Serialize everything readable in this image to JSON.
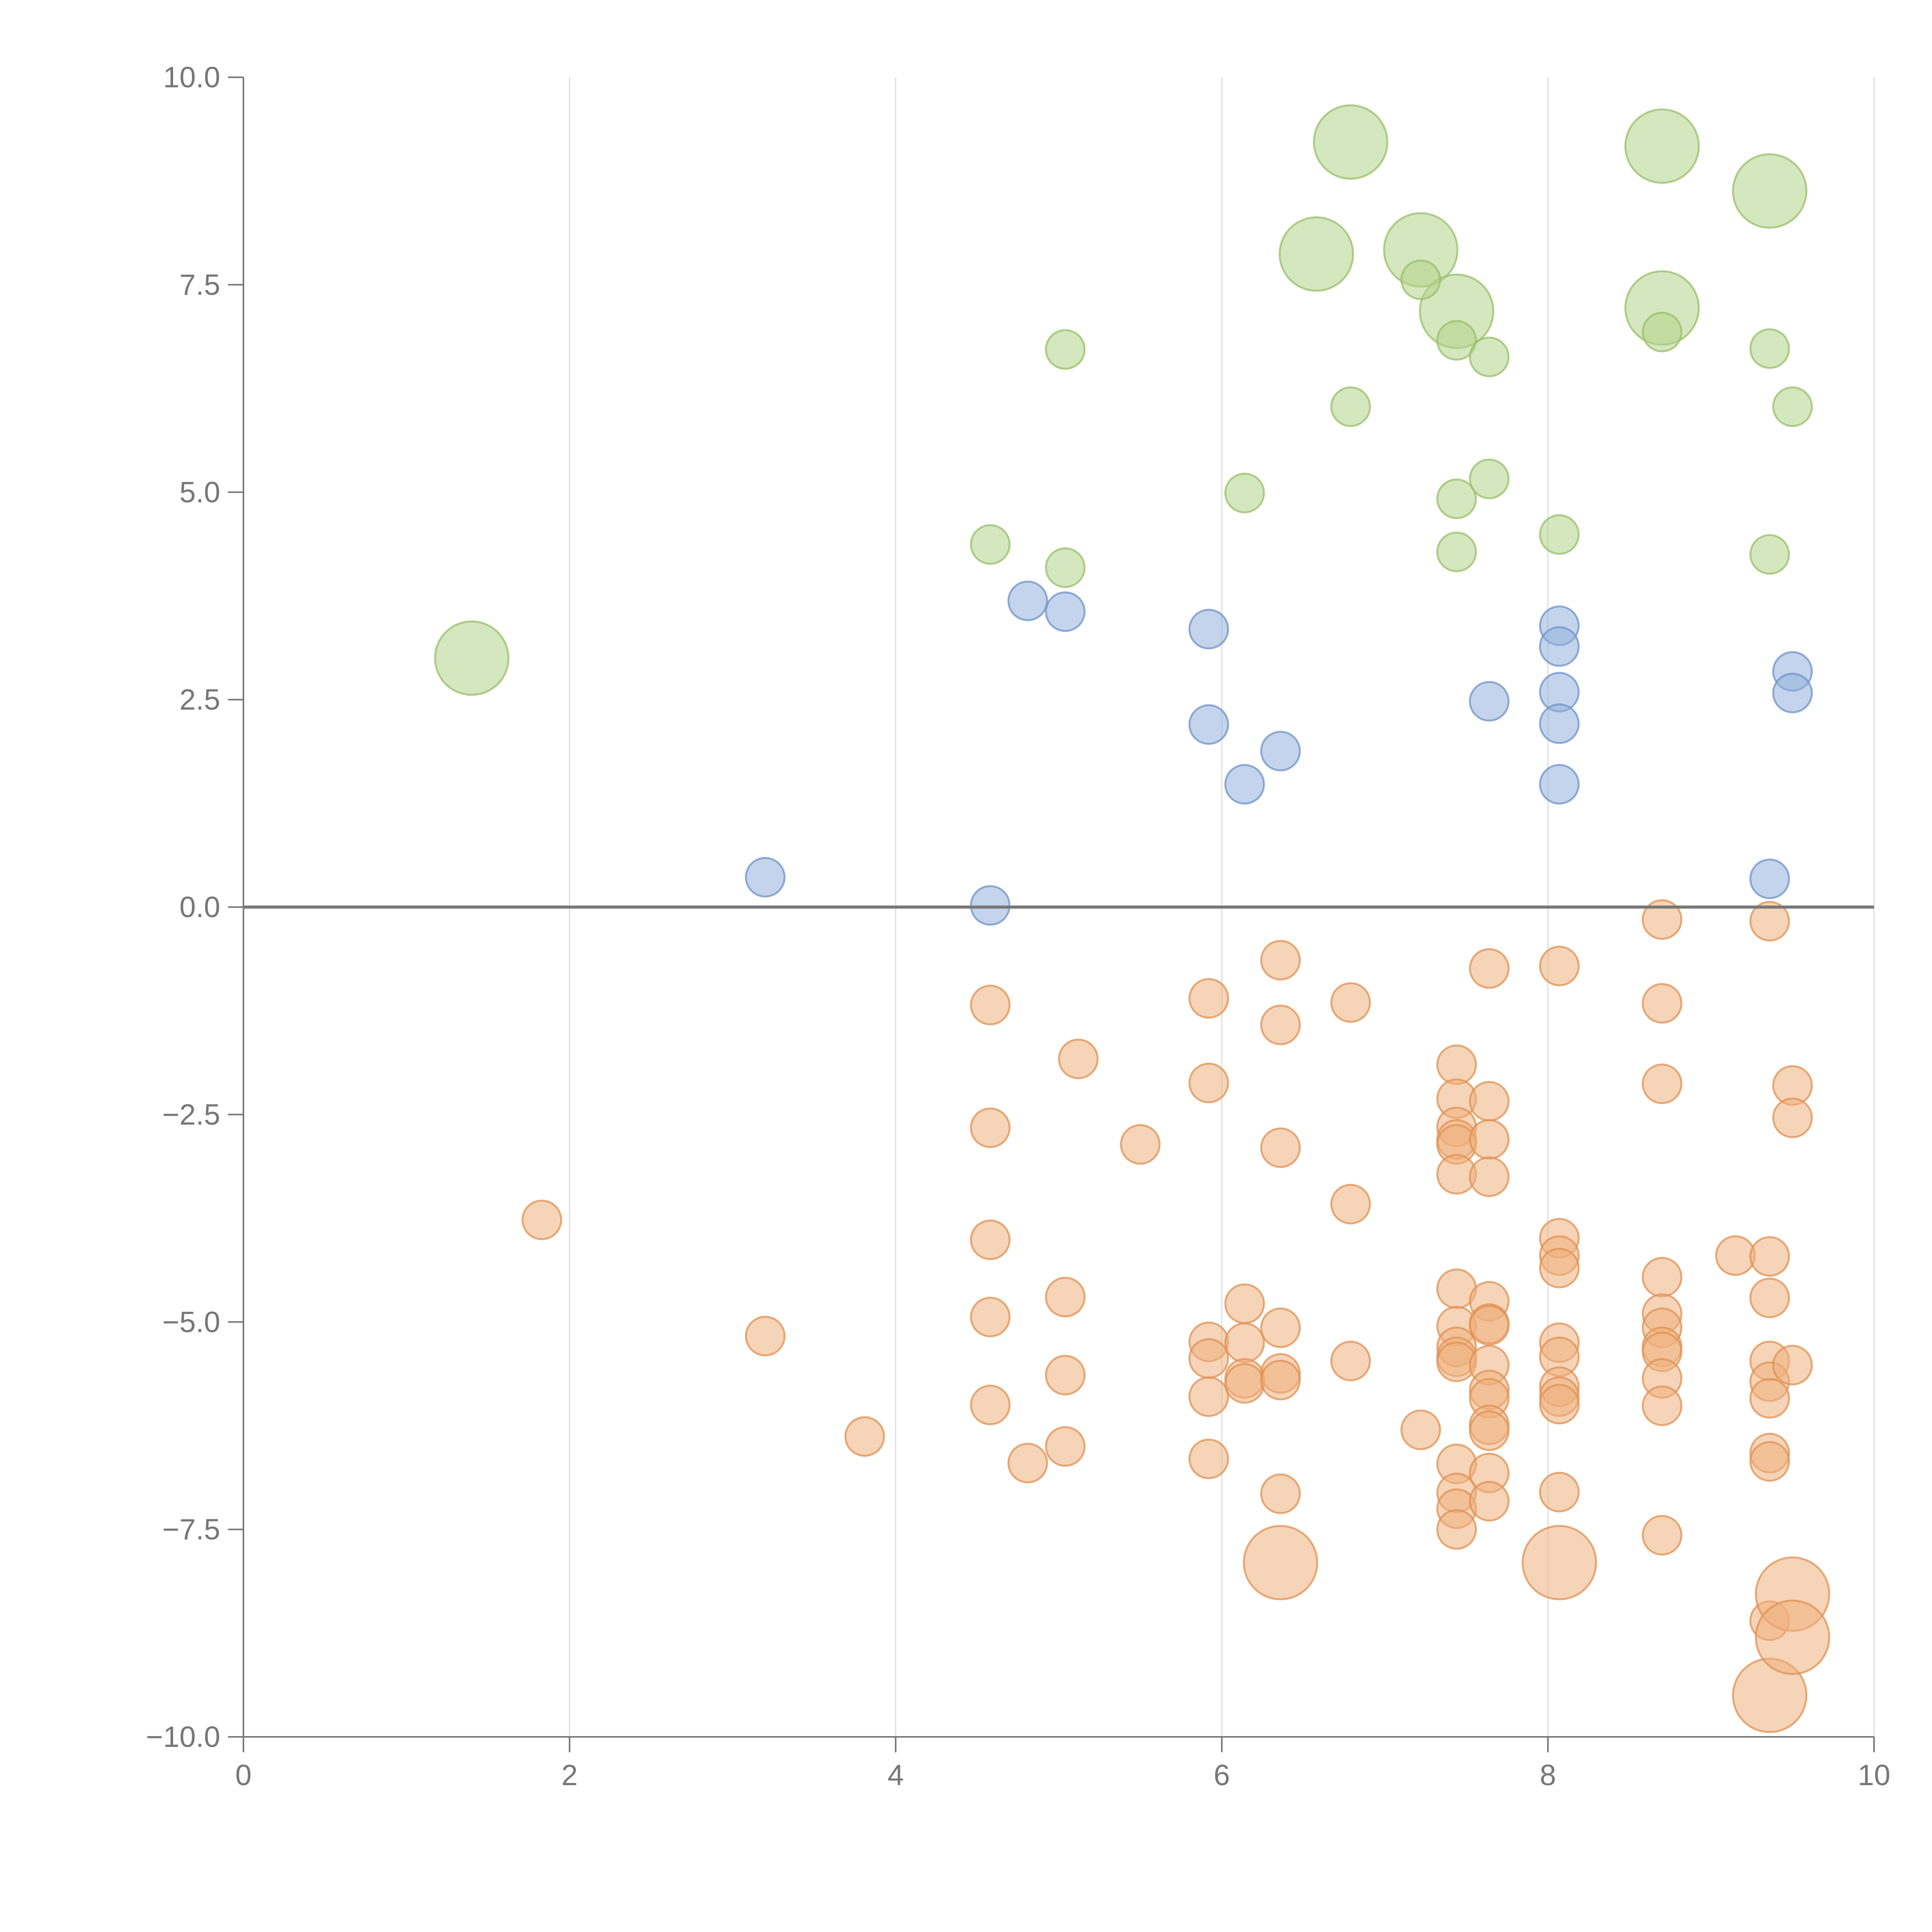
{
  "chart_data": {
    "type": "scatter",
    "title": "",
    "xlabel": "",
    "ylabel": "",
    "xlim": [
      0,
      10
    ],
    "ylim": [
      -10,
      10
    ],
    "grid": "vertical",
    "x_ticks": [
      0,
      2,
      4,
      6,
      8,
      10
    ],
    "y_ticks": [
      -10,
      -7.5,
      -5,
      -2.5,
      0,
      2.5,
      5,
      7.5,
      10
    ],
    "x_tick_labels": [
      "0",
      "2",
      "4",
      "6",
      "8",
      "10"
    ],
    "y_tick_labels": [
      "−10.0",
      "−7.5",
      "−5.0",
      "−2.5",
      "0.0",
      "2.5",
      "5.0",
      "7.5",
      "10.0"
    ],
    "zero_line": 0,
    "series": [
      {
        "name": "green",
        "color": "#b3d38a",
        "stroke": "#97bf68",
        "points": [
          [
            1.4,
            3.0,
            3
          ],
          [
            5.04,
            6.72,
            1
          ],
          [
            6.79,
            9.22,
            3
          ],
          [
            8.7,
            9.17,
            3
          ],
          [
            9.36,
            8.63,
            3
          ],
          [
            6.58,
            7.87,
            3
          ],
          [
            7.22,
            7.92,
            3
          ],
          [
            7.44,
            7.18,
            3
          ],
          [
            8.7,
            7.22,
            3
          ],
          [
            7.22,
            7.56,
            1
          ],
          [
            7.44,
            6.83,
            1
          ],
          [
            7.64,
            6.63,
            1
          ],
          [
            8.7,
            6.93,
            1
          ],
          [
            9.36,
            6.73,
            1
          ],
          [
            9.5,
            6.03,
            1
          ],
          [
            6.79,
            6.03,
            1
          ],
          [
            6.14,
            4.99,
            1
          ],
          [
            7.44,
            4.92,
            1
          ],
          [
            7.64,
            5.16,
            1
          ],
          [
            4.58,
            4.37,
            1
          ],
          [
            5.04,
            4.09,
            1
          ],
          [
            7.44,
            4.28,
            1
          ],
          [
            8.07,
            4.49,
            1
          ],
          [
            9.36,
            4.25,
            1
          ]
        ]
      },
      {
        "name": "blue",
        "color": "#93b1dc",
        "stroke": "#6f93c8",
        "points": [
          [
            3.2,
            0.36,
            1
          ],
          [
            4.58,
            0.02,
            1
          ],
          [
            4.81,
            3.69,
            1
          ],
          [
            5.04,
            3.56,
            1
          ],
          [
            5.92,
            3.35,
            1
          ],
          [
            5.92,
            2.2,
            1
          ],
          [
            6.14,
            1.48,
            1
          ],
          [
            6.36,
            1.88,
            1
          ],
          [
            7.64,
            2.48,
            1
          ],
          [
            8.07,
            3.39,
            1
          ],
          [
            8.07,
            3.14,
            1
          ],
          [
            8.07,
            2.59,
            1
          ],
          [
            8.07,
            2.21,
            1
          ],
          [
            8.07,
            1.48,
            1
          ],
          [
            9.5,
            2.84,
            1
          ],
          [
            9.5,
            2.58,
            1
          ],
          [
            9.36,
            0.34,
            1
          ]
        ]
      },
      {
        "name": "orange",
        "color": "#efb17e",
        "stroke": "#e09052",
        "points": [
          [
            1.83,
            -3.77,
            1
          ],
          [
            3.2,
            -5.17,
            1
          ],
          [
            3.81,
            -6.38,
            1
          ],
          [
            4.58,
            -1.18,
            1
          ],
          [
            4.58,
            -2.66,
            1
          ],
          [
            4.58,
            -4.01,
            1
          ],
          [
            4.58,
            -4.94,
            1
          ],
          [
            4.58,
            -6.0,
            1
          ],
          [
            4.81,
            -6.7,
            1
          ],
          [
            5.04,
            -4.7,
            1
          ],
          [
            5.04,
            -5.64,
            1
          ],
          [
            5.04,
            -6.5,
            1
          ],
          [
            5.12,
            -1.83,
            1
          ],
          [
            5.5,
            -2.86,
            1
          ],
          [
            5.92,
            -1.1,
            1
          ],
          [
            5.92,
            -2.12,
            1
          ],
          [
            5.92,
            -5.24,
            1
          ],
          [
            5.92,
            -5.44,
            1
          ],
          [
            5.92,
            -5.9,
            1
          ],
          [
            5.92,
            -6.65,
            1
          ],
          [
            6.14,
            -4.78,
            1
          ],
          [
            6.14,
            -5.25,
            1
          ],
          [
            6.14,
            -5.68,
            1
          ],
          [
            6.14,
            -5.74,
            1
          ],
          [
            6.36,
            -0.64,
            1
          ],
          [
            6.36,
            -1.42,
            1
          ],
          [
            6.36,
            -2.9,
            1
          ],
          [
            6.36,
            -5.07,
            1
          ],
          [
            6.36,
            -5.62,
            1
          ],
          [
            6.36,
            -5.7,
            1
          ],
          [
            6.36,
            -7.07,
            1
          ],
          [
            6.36,
            -7.9,
            3
          ],
          [
            6.79,
            -1.15,
            1
          ],
          [
            6.79,
            -3.58,
            1
          ],
          [
            6.79,
            -5.47,
            1
          ],
          [
            7.22,
            -6.3,
            1
          ],
          [
            7.44,
            -1.9,
            1
          ],
          [
            7.44,
            -2.31,
            1
          ],
          [
            7.44,
            -2.65,
            1
          ],
          [
            7.44,
            -2.8,
            1
          ],
          [
            7.44,
            -2.86,
            1
          ],
          [
            7.44,
            -3.22,
            1
          ],
          [
            7.44,
            -4.6,
            1
          ],
          [
            7.44,
            -5.05,
            1
          ],
          [
            7.44,
            -5.3,
            1
          ],
          [
            7.44,
            -5.42,
            1
          ],
          [
            7.44,
            -5.48,
            1
          ],
          [
            7.44,
            -6.71,
            1
          ],
          [
            7.44,
            -7.06,
            1
          ],
          [
            7.44,
            -7.25,
            1
          ],
          [
            7.44,
            -7.5,
            1
          ],
          [
            7.64,
            -0.74,
            1
          ],
          [
            7.64,
            -2.34,
            1
          ],
          [
            7.64,
            -2.8,
            1
          ],
          [
            7.64,
            -3.25,
            1
          ],
          [
            7.64,
            -4.75,
            1
          ],
          [
            7.64,
            -5.02,
            1
          ],
          [
            7.64,
            -5.04,
            1
          ],
          [
            7.64,
            -5.52,
            1
          ],
          [
            7.64,
            -5.82,
            1
          ],
          [
            7.64,
            -5.92,
            1
          ],
          [
            7.64,
            -6.24,
            1
          ],
          [
            7.64,
            -6.31,
            1
          ],
          [
            7.64,
            -6.82,
            1
          ],
          [
            7.64,
            -7.16,
            1
          ],
          [
            8.07,
            -0.71,
            1
          ],
          [
            8.07,
            -3.99,
            1
          ],
          [
            8.07,
            -4.2,
            1
          ],
          [
            8.07,
            -4.35,
            1
          ],
          [
            8.07,
            -5.25,
            1
          ],
          [
            8.07,
            -5.42,
            1
          ],
          [
            8.07,
            -5.78,
            1
          ],
          [
            8.07,
            -5.9,
            1
          ],
          [
            8.07,
            -5.99,
            1
          ],
          [
            8.07,
            -7.05,
            1
          ],
          [
            8.07,
            -7.9,
            3
          ],
          [
            8.7,
            -0.15,
            1
          ],
          [
            8.7,
            -1.16,
            1
          ],
          [
            8.7,
            -2.13,
            1
          ],
          [
            8.7,
            -4.46,
            1
          ],
          [
            8.7,
            -4.9,
            1
          ],
          [
            8.7,
            -5.07,
            1
          ],
          [
            8.7,
            -5.3,
            1
          ],
          [
            8.7,
            -5.36,
            1
          ],
          [
            8.7,
            -5.68,
            1
          ],
          [
            8.7,
            -6.01,
            1
          ],
          [
            8.7,
            -7.57,
            1
          ],
          [
            9.15,
            -4.2,
            1
          ],
          [
            9.36,
            -0.17,
            1
          ],
          [
            9.36,
            -4.21,
            1
          ],
          [
            9.36,
            -4.71,
            1
          ],
          [
            9.36,
            -5.47,
            1
          ],
          [
            9.36,
            -5.72,
            1
          ],
          [
            9.36,
            -5.92,
            1
          ],
          [
            9.36,
            -6.58,
            1
          ],
          [
            9.36,
            -6.68,
            1
          ],
          [
            9.36,
            -8.6,
            1
          ],
          [
            9.36,
            -9.5,
            3
          ],
          [
            9.5,
            -2.15,
            1
          ],
          [
            9.5,
            -2.54,
            1
          ],
          [
            9.5,
            -5.52,
            1
          ],
          [
            9.5,
            -8.28,
            3
          ],
          [
            9.5,
            -8.8,
            3
          ]
        ]
      }
    ]
  }
}
